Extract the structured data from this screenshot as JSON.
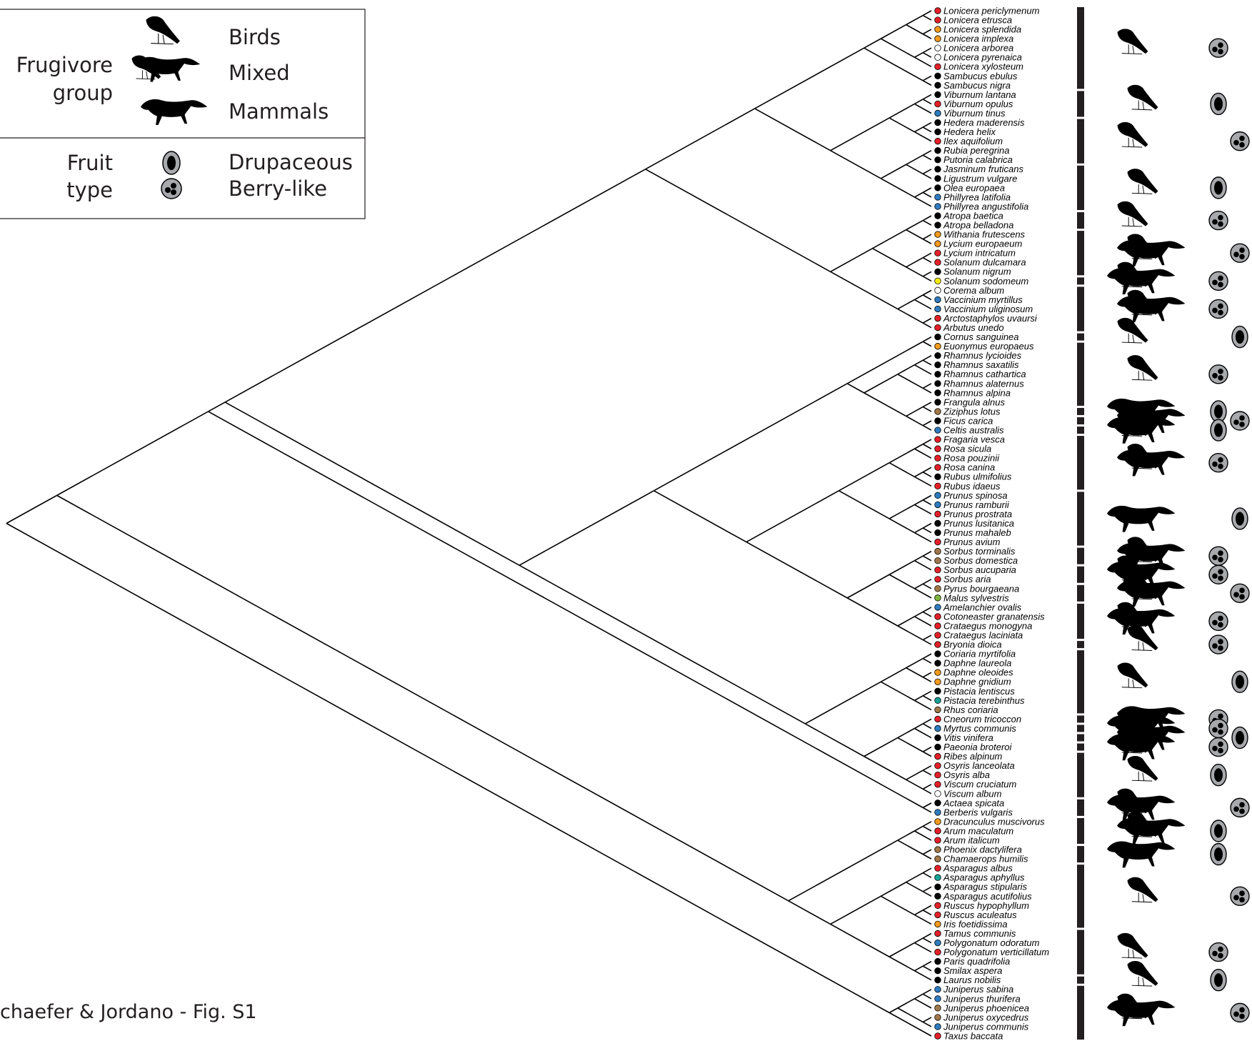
{
  "legend": {
    "frugivore_label": [
      "Frugivore",
      "group"
    ],
    "frugivore_groups": [
      "Birds",
      "Mixed",
      "Mammals"
    ],
    "fruit_label": [
      "Fruit",
      "type"
    ],
    "fruit_types": [
      "Drupaceous",
      "Berry-like"
    ]
  },
  "caption": "chaefer & Jordano - Fig. S1",
  "tree": {
    "tips": [
      {
        "name": "Lonicera periclymenum",
        "color": "#e4202a"
      },
      {
        "name": "Lonicera etrusca",
        "color": "#e4202a"
      },
      {
        "name": "Lonicera splendida",
        "color": "#f39a1e"
      },
      {
        "name": "Lonicera implexa",
        "color": "#f39a1e"
      },
      {
        "name": "Lonicera arborea",
        "color": "#ffffff"
      },
      {
        "name": "Lonicera pyrenaica",
        "color": "#ffffff"
      },
      {
        "name": "Lonicera xylosteum",
        "color": "#e4202a"
      },
      {
        "name": "Sambucus ebulus",
        "color": "#000000"
      },
      {
        "name": "Sambucus nigra",
        "color": "#000000"
      },
      {
        "name": "Viburnum lantana",
        "color": "#000000"
      },
      {
        "name": "Viburnum opulus",
        "color": "#e4202a"
      },
      {
        "name": "Viburnum tinus",
        "color": "#2e7bbf"
      },
      {
        "name": "Hedera maderensis",
        "color": "#000000"
      },
      {
        "name": "Hedera helix",
        "color": "#000000"
      },
      {
        "name": "Ilex aquifolium",
        "color": "#e4202a"
      },
      {
        "name": "Rubia peregrina",
        "color": "#000000"
      },
      {
        "name": "Putoria calabrica",
        "color": "#000000"
      },
      {
        "name": "Jasminum fruticans",
        "color": "#000000"
      },
      {
        "name": "Ligustrum vulgare",
        "color": "#000000"
      },
      {
        "name": "Olea europaea",
        "color": "#000000"
      },
      {
        "name": "Phillyrea latifolia",
        "color": "#2e7bbf"
      },
      {
        "name": "Phillyrea angustifolia",
        "color": "#2e7bbf"
      },
      {
        "name": "Atropa baetica",
        "color": "#000000"
      },
      {
        "name": "Atropa belladona",
        "color": "#000000"
      },
      {
        "name": "Withania frutescens",
        "color": "#f39a1e"
      },
      {
        "name": "Lycium europaeum",
        "color": "#f39a1e"
      },
      {
        "name": "Lycium intricatum",
        "color": "#e4202a"
      },
      {
        "name": "Solanum dulcamara",
        "color": "#e4202a"
      },
      {
        "name": "Solanum nigrum",
        "color": "#000000"
      },
      {
        "name": "Solanum sodomeum",
        "color": "#f7ec13"
      },
      {
        "name": "Corema album",
        "color": "#ffffff"
      },
      {
        "name": "Vaccinium myrtillus",
        "color": "#2e7bbf"
      },
      {
        "name": "Vaccinium uliginosum",
        "color": "#2e7bbf"
      },
      {
        "name": "Arctostaphylos uvaursi",
        "color": "#e4202a"
      },
      {
        "name": "Arbutus unedo",
        "color": "#e4202a"
      },
      {
        "name": "Cornus sanguinea",
        "color": "#000000"
      },
      {
        "name": "Euonymus europaeus",
        "color": "#f39a1e"
      },
      {
        "name": "Rhamnus lycioides",
        "color": "#000000"
      },
      {
        "name": "Rhamnus saxatilis",
        "color": "#000000"
      },
      {
        "name": "Rhamnus cathartica",
        "color": "#000000"
      },
      {
        "name": "Rhamnus alaternus",
        "color": "#000000"
      },
      {
        "name": "Rhamnus alpina",
        "color": "#000000"
      },
      {
        "name": "Frangula alnus",
        "color": "#000000"
      },
      {
        "name": "Ziziphus lotus",
        "color": "#a0784a"
      },
      {
        "name": "Ficus carica",
        "color": "#000000"
      },
      {
        "name": "Celtis australis",
        "color": "#2e7bbf"
      },
      {
        "name": "Fragaria vesca",
        "color": "#e4202a"
      },
      {
        "name": "Rosa sicula",
        "color": "#e4202a"
      },
      {
        "name": "Rosa pouzinii",
        "color": "#e4202a"
      },
      {
        "name": "Rosa canina",
        "color": "#e4202a"
      },
      {
        "name": "Rubus ulmifolius",
        "color": "#000000"
      },
      {
        "name": "Rubus idaeus",
        "color": "#e4202a"
      },
      {
        "name": "Prunus spinosa",
        "color": "#2e7bbf"
      },
      {
        "name": "Prunus ramburii",
        "color": "#2e7bbf"
      },
      {
        "name": "Prunus prostrata",
        "color": "#e4202a"
      },
      {
        "name": "Prunus lusitanica",
        "color": "#000000"
      },
      {
        "name": "Prunus mahaleb",
        "color": "#000000"
      },
      {
        "name": "Prunus avium",
        "color": "#e4202a"
      },
      {
        "name": "Sorbus torminalis",
        "color": "#a0784a"
      },
      {
        "name": "Sorbus domestica",
        "color": "#a0784a"
      },
      {
        "name": "Sorbus aucuparia",
        "color": "#e4202a"
      },
      {
        "name": "Sorbus aria",
        "color": "#e4202a"
      },
      {
        "name": "Pyrus bourgaeana",
        "color": "#a0784a"
      },
      {
        "name": "Malus sylvestris",
        "color": "#7fb539"
      },
      {
        "name": "Amelanchier ovalis",
        "color": "#2e7bbf"
      },
      {
        "name": "Cotoneaster granatensis",
        "color": "#e4202a"
      },
      {
        "name": "Crataegus monogyna",
        "color": "#e4202a"
      },
      {
        "name": "Crataegus laciniata",
        "color": "#e4202a"
      },
      {
        "name": "Bryonia dioica",
        "color": "#e4202a"
      },
      {
        "name": "Coriaria myrtifolia",
        "color": "#000000"
      },
      {
        "name": "Daphne laureola",
        "color": "#000000"
      },
      {
        "name": "Daphne oleoides",
        "color": "#f39a1e"
      },
      {
        "name": "Daphne gnidium",
        "color": "#f39a1e"
      },
      {
        "name": "Pistacia lentiscus",
        "color": "#000000"
      },
      {
        "name": "Pistacia terebinthus",
        "color": "#1aa196"
      },
      {
        "name": "Rhus coriaria",
        "color": "#a0784a"
      },
      {
        "name": "Cneorum tricoccon",
        "color": "#e4202a"
      },
      {
        "name": "Myrtus communis",
        "color": "#2e7bbf"
      },
      {
        "name": "Vitis vinifera",
        "color": "#000000"
      },
      {
        "name": "Paeonia broteroi",
        "color": "#000000"
      },
      {
        "name": "Ribes alpinum",
        "color": "#e4202a"
      },
      {
        "name": "Osyris lanceolata",
        "color": "#e4202a"
      },
      {
        "name": "Osyris alba",
        "color": "#e4202a"
      },
      {
        "name": "Viscum cruciatum",
        "color": "#e4202a"
      },
      {
        "name": "Viscum album",
        "color": "#ffffff"
      },
      {
        "name": "Actaea spicata",
        "color": "#000000"
      },
      {
        "name": "Berberis vulgaris",
        "color": "#2e7bbf"
      },
      {
        "name": "Dracunculus muscivorus",
        "color": "#f39a1e"
      },
      {
        "name": "Arum maculatum",
        "color": "#e4202a"
      },
      {
        "name": "Arum italicum",
        "color": "#e4202a"
      },
      {
        "name": "Phoenix dactylifera",
        "color": "#a0784a"
      },
      {
        "name": "Chamaerops humilis",
        "color": "#a0784a"
      },
      {
        "name": "Asparagus albus",
        "color": "#e4202a"
      },
      {
        "name": "Asparagus aphyllus",
        "color": "#1aa196"
      },
      {
        "name": "Asparagus stipularis",
        "color": "#000000"
      },
      {
        "name": "Asparagus acutifolius",
        "color": "#000000"
      },
      {
        "name": "Ruscus hypophyllum",
        "color": "#e4202a"
      },
      {
        "name": "Ruscus aculeatus",
        "color": "#e4202a"
      },
      {
        "name": "Iris foetidissima",
        "color": "#f39a1e"
      },
      {
        "name": "Tamus communis",
        "color": "#e4202a"
      },
      {
        "name": "Polygonatum odoratum",
        "color": "#2e7bbf"
      },
      {
        "name": "Polygonatum verticillatum",
        "color": "#e4202a"
      },
      {
        "name": "Paris quadrifolia",
        "color": "#000000"
      },
      {
        "name": "Smilax aspera",
        "color": "#000000"
      },
      {
        "name": "Laurus nobilis",
        "color": "#000000"
      },
      {
        "name": "Juniperus sabina",
        "color": "#2e7bbf"
      },
      {
        "name": "Juniperus thurifera",
        "color": "#2e7bbf"
      },
      {
        "name": "Juniperus phoenicea",
        "color": "#a0784a"
      },
      {
        "name": "Juniperus oxycedrus",
        "color": "#a0784a"
      },
      {
        "name": "Juniperus communis",
        "color": "#2e7bbf"
      },
      {
        "name": "Taxus baccata",
        "color": "#e4202a"
      }
    ]
  }
}
